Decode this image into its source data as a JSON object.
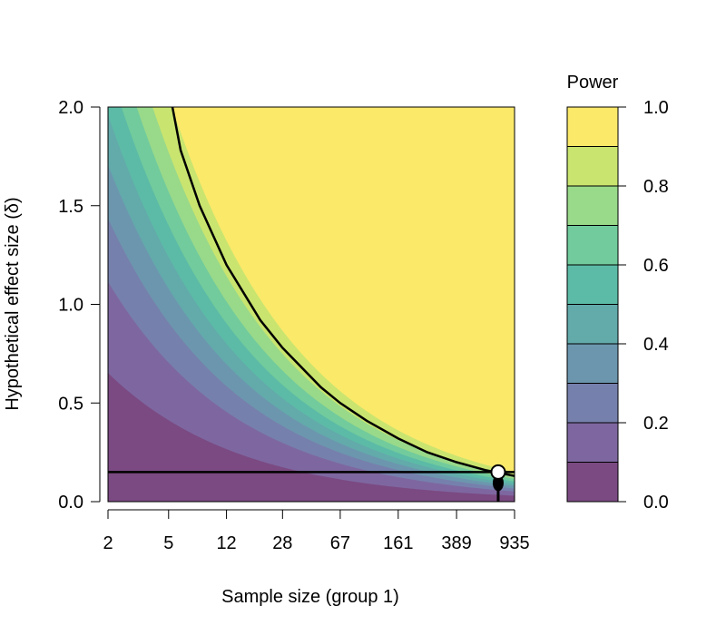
{
  "chart_data": {
    "type": "contour",
    "x_scale": "log",
    "xlabel": "Sample size (group 1)",
    "ylabel": "Hypothetical effect size (δ)",
    "x_ticks": [
      2,
      5,
      12,
      28,
      67,
      161,
      389,
      935
    ],
    "x_tick_labels": [
      "2",
      "5",
      "12",
      "28",
      "67",
      "161",
      "389",
      "935"
    ],
    "xlim": [
      2,
      935
    ],
    "y_ticks": [
      0.0,
      0.5,
      1.0,
      1.5,
      2.0
    ],
    "y_tick_labels": [
      "0.0",
      "0.5",
      "1.0",
      "1.5",
      "2.0"
    ],
    "ylim": [
      0,
      2.0
    ],
    "legend": {
      "title": "Power",
      "placement": "right",
      "levels": [
        0.0,
        0.1,
        0.2,
        0.3,
        0.4,
        0.5,
        0.6,
        0.7,
        0.8,
        0.9,
        1.0
      ],
      "tick_values": [
        0.0,
        0.2,
        0.4,
        0.6,
        0.8,
        1.0
      ],
      "tick_labels": [
        "0.0",
        "0.2",
        "0.4",
        "0.6",
        "0.8",
        "1.0"
      ],
      "colors": [
        "#7b4a82",
        "#7e67a0",
        "#7680ac",
        "#6c96ae",
        "#63aaab",
        "#5cbba6",
        "#71cb9c",
        "#99d98a",
        "#c9e56f",
        "#fbe96a"
      ]
    },
    "power_contour": {
      "level": 0.9,
      "points": [
        {
          "x": 5.3,
          "y": 2.0
        },
        {
          "x": 6,
          "y": 1.78
        },
        {
          "x": 8,
          "y": 1.5
        },
        {
          "x": 12,
          "y": 1.2
        },
        {
          "x": 20,
          "y": 0.92
        },
        {
          "x": 28,
          "y": 0.78
        },
        {
          "x": 50,
          "y": 0.58
        },
        {
          "x": 67,
          "y": 0.5
        },
        {
          "x": 100,
          "y": 0.41
        },
        {
          "x": 161,
          "y": 0.32
        },
        {
          "x": 250,
          "y": 0.25
        },
        {
          "x": 389,
          "y": 0.2
        },
        {
          "x": 600,
          "y": 0.16
        },
        {
          "x": 935,
          "y": 0.13
        }
      ]
    },
    "reference_line": {
      "effect_size": 0.15
    },
    "marker": {
      "x": 730,
      "y": 0.15
    }
  }
}
